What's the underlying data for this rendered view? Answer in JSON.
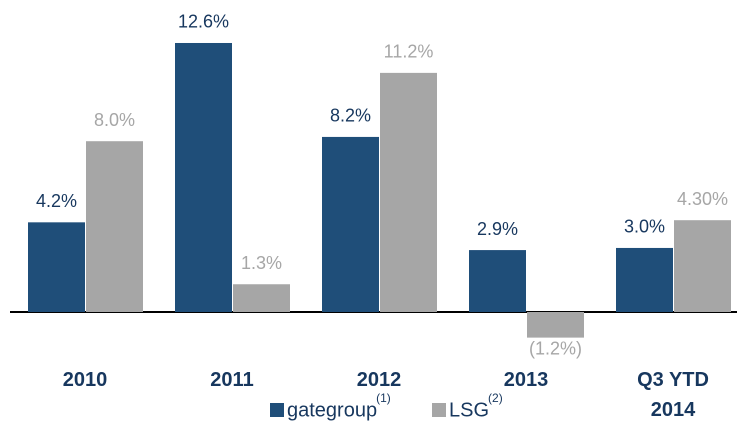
{
  "chart_data": {
    "type": "bar",
    "categories": [
      "2010",
      "2011",
      "2012",
      "2013",
      "Q3 YTD 2014"
    ],
    "series": [
      {
        "name": "gategroup",
        "superscript": "(1)",
        "color": "#1f4e79",
        "label_color": "#17375e",
        "values": [
          4.2,
          12.6,
          8.2,
          2.9,
          3.0
        ],
        "value_labels": [
          "4.2%",
          "12.6%",
          "8.2%",
          "2.9%",
          "3.0%"
        ]
      },
      {
        "name": "LSG",
        "superscript": "(2)",
        "color": "#a6a6a6",
        "label_color": "#a6a6a6",
        "values": [
          8.0,
          1.3,
          11.2,
          -1.2,
          4.3
        ],
        "value_labels": [
          "8.0%",
          "1.3%",
          "11.2%",
          "(1.2%)",
          "4.30%"
        ]
      }
    ]
  }
}
